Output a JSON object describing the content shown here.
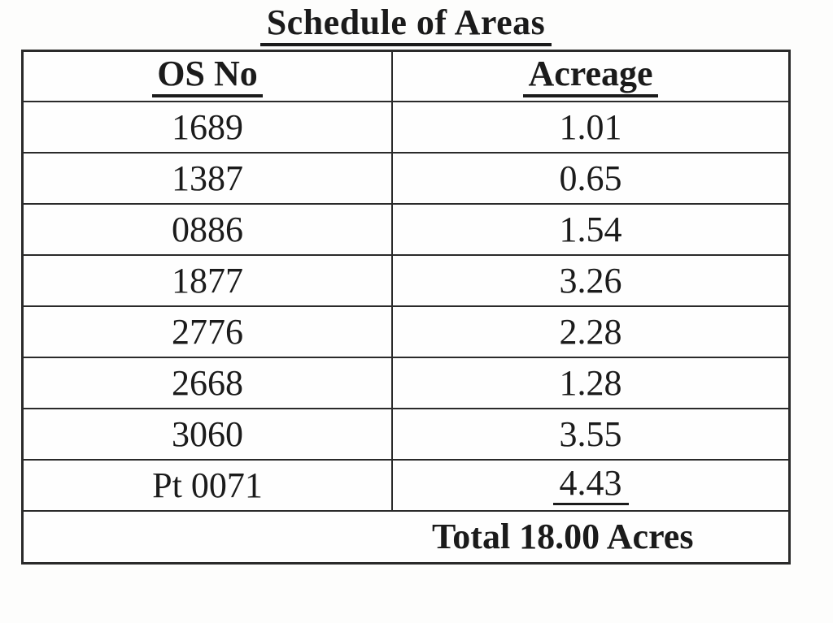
{
  "title": "Schedule of Areas",
  "table": {
    "headers": {
      "os_no": "OS No",
      "acreage": "Acreage"
    },
    "rows": [
      {
        "os_no": "1689",
        "acreage": "1.01"
      },
      {
        "os_no": "1387",
        "acreage": "0.65"
      },
      {
        "os_no": "0886",
        "acreage": "1.54"
      },
      {
        "os_no": "1877",
        "acreage": "3.26"
      },
      {
        "os_no": "2776",
        "acreage": "2.28"
      },
      {
        "os_no": "2668",
        "acreage": "1.28"
      },
      {
        "os_no": "3060",
        "acreage": "3.55"
      },
      {
        "os_no": "Pt 0071",
        "acreage": "4.43"
      }
    ],
    "total_label": "Total 18.00 Acres"
  },
  "colors": {
    "ink": "#1b1b1b",
    "border": "#2a2a2a",
    "background": "#fdfdfc"
  }
}
